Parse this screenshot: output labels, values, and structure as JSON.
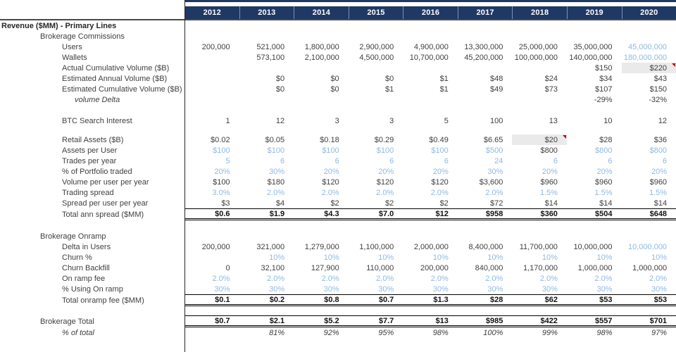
{
  "colors": {
    "header_bg": "#1F3864",
    "header_text": "#FFFFFF",
    "input_blue": "#8FB9E4",
    "highlight_grey": "#EAEAEA",
    "comment_red": "#C00000",
    "text": "#404040"
  },
  "columns": [
    "2012",
    "2013",
    "2014",
    "2015",
    "2016",
    "2017",
    "2018",
    "2019",
    "2020"
  ],
  "rows": [
    {
      "label": "Revenue ($MM) - Primary Lines",
      "ind": 0,
      "bold": true,
      "cells": [
        "",
        "",
        "",
        "",
        "",
        "",
        "",
        "",
        ""
      ]
    },
    {
      "label": "Brokerage Commissions",
      "ind": 1,
      "cells": [
        "",
        "",
        "",
        "",
        "",
        "",
        "",
        "",
        ""
      ]
    },
    {
      "label": "Users",
      "ind": 2,
      "cells": [
        "200,000",
        "521,000",
        "1,800,000",
        "2,900,000",
        "4,900,000",
        "13,300,000",
        "25,000,000",
        "35,000,000",
        {
          "v": "45,000,000",
          "b": 1
        }
      ]
    },
    {
      "label": "Wallets",
      "ind": 2,
      "cells": [
        "",
        "573,100",
        "2,100,000",
        "4,500,000",
        "10,700,000",
        "45,200,000",
        "100,000,000",
        "140,000,000",
        {
          "v": "180,000,000",
          "b": 1
        }
      ]
    },
    {
      "label": "Actual Cumulative Volume ($B)",
      "ind": 2,
      "cells": [
        "",
        "",
        "",
        "",
        "",
        "",
        "",
        "$150",
        {
          "v": "$220",
          "g": 1,
          "n": 1
        }
      ]
    },
    {
      "label": "Estimated Annual Volume ($B)",
      "ind": 2,
      "cells": [
        "",
        "$0",
        "$0",
        "$0",
        "$1",
        "$48",
        "$24",
        "$34",
        "$43"
      ]
    },
    {
      "label": "Estimated Cumulative Volume ($B)",
      "ind": 2,
      "cells": [
        "",
        "$0",
        "$0",
        "$1",
        "$1",
        "$49",
        "$73",
        "$107",
        "$150"
      ]
    },
    {
      "label": "volume Delta",
      "ind": 3,
      "ital": true,
      "cells": [
        "",
        "",
        "",
        "",
        "",
        "",
        "",
        "-29%",
        "-32%"
      ]
    },
    {
      "blank": true,
      "h": 15
    },
    {
      "label": "BTC Search Interest",
      "ind": 2,
      "cells": [
        "1",
        "12",
        "3",
        "3",
        "5",
        "100",
        "13",
        "10",
        "12"
      ]
    },
    {
      "blank": true,
      "h": 12
    },
    {
      "label": "Retail Assets ($B)",
      "ind": 2,
      "cells": [
        "$0.02",
        "$0.05",
        "$0.18",
        "$0.29",
        "$0.49",
        "$6.65",
        {
          "v": "$20",
          "g": 1,
          "n": 1
        },
        "$28",
        "$36"
      ]
    },
    {
      "label": "Assets per User",
      "ind": 2,
      "cells": [
        {
          "v": "$100",
          "b": 1
        },
        {
          "v": "$100",
          "b": 1
        },
        {
          "v": "$100",
          "b": 1
        },
        {
          "v": "$100",
          "b": 1
        },
        {
          "v": "$100",
          "b": 1
        },
        {
          "v": "$500",
          "b": 1
        },
        "$800",
        {
          "v": "$800",
          "b": 1
        },
        {
          "v": "$800",
          "b": 1
        }
      ]
    },
    {
      "label": "Trades per year",
      "ind": 2,
      "cells": [
        {
          "v": "5",
          "b": 1
        },
        {
          "v": "6",
          "b": 1
        },
        {
          "v": "6",
          "b": 1
        },
        {
          "v": "6",
          "b": 1
        },
        {
          "v": "6",
          "b": 1
        },
        {
          "v": "24",
          "b": 1
        },
        {
          "v": "6",
          "b": 1
        },
        {
          "v": "6",
          "b": 1
        },
        {
          "v": "6",
          "b": 1
        }
      ]
    },
    {
      "label": "% of Portfolio traded",
      "ind": 2,
      "cells": [
        {
          "v": "20%",
          "b": 1
        },
        {
          "v": "30%",
          "b": 1
        },
        {
          "v": "20%",
          "b": 1
        },
        {
          "v": "20%",
          "b": 1
        },
        {
          "v": "20%",
          "b": 1
        },
        {
          "v": "30%",
          "b": 1
        },
        {
          "v": "20%",
          "b": 1
        },
        {
          "v": "20%",
          "b": 1
        },
        {
          "v": "20%",
          "b": 1
        }
      ]
    },
    {
      "label": "Volume per user per year",
      "ind": 2,
      "cells": [
        "$100",
        "$180",
        "$120",
        "$120",
        "$120",
        "$3,600",
        "$960",
        "$960",
        "$960"
      ]
    },
    {
      "label": "Trading spread",
      "ind": 2,
      "cells": [
        {
          "v": "3.0%",
          "b": 1
        },
        {
          "v": "2.0%",
          "b": 1
        },
        {
          "v": "2.0%",
          "b": 1
        },
        {
          "v": "2.0%",
          "b": 1
        },
        {
          "v": "2.0%",
          "b": 1
        },
        {
          "v": "2.0%",
          "b": 1
        },
        {
          "v": "1.5%",
          "b": 1
        },
        {
          "v": "1.5%",
          "b": 1
        },
        {
          "v": "1.5%",
          "b": 1
        }
      ]
    },
    {
      "label": "Spread per user per year",
      "ind": 2,
      "cells": [
        "$3",
        "$4",
        "$2",
        "$2",
        "$2",
        "$72",
        "$14",
        "$14",
        "$14"
      ]
    },
    {
      "label": "Total ann spread ($MM)",
      "ind": 2,
      "total": true,
      "cells": [
        "$0.6",
        "$1.9",
        "$4.3",
        "$7.0",
        "$12",
        "$958",
        "$360",
        "$504",
        "$648"
      ]
    },
    {
      "blank": true,
      "h": 15
    },
    {
      "label": "Brokerage Onramp",
      "ind": 1,
      "cells": [
        "",
        "",
        "",
        "",
        "",
        "",
        "",
        "",
        ""
      ]
    },
    {
      "label": "Delta in Users",
      "ind": 2,
      "cells": [
        "200,000",
        "321,000",
        "1,279,000",
        "1,100,000",
        "2,000,000",
        "8,400,000",
        "11,700,000",
        "10,000,000",
        {
          "v": "10,000,000",
          "b": 1
        }
      ]
    },
    {
      "label": "Churn %",
      "ind": 2,
      "cells": [
        "",
        {
          "v": "10%",
          "b": 1
        },
        {
          "v": "10%",
          "b": 1
        },
        {
          "v": "10%",
          "b": 1
        },
        {
          "v": "10%",
          "b": 1
        },
        {
          "v": "10%",
          "b": 1
        },
        {
          "v": "10%",
          "b": 1
        },
        {
          "v": "10%",
          "b": 1
        },
        {
          "v": "10%",
          "b": 1
        }
      ]
    },
    {
      "label": "Churn Backfill",
      "ind": 2,
      "cells": [
        "0",
        "32,100",
        "127,900",
        "110,000",
        "200,000",
        "840,000",
        "1,170,000",
        "1,000,000",
        "1,000,000"
      ]
    },
    {
      "label": "On ramp fee",
      "ind": 2,
      "cells": [
        {
          "v": "2.0%",
          "b": 1
        },
        {
          "v": "2.0%",
          "b": 1
        },
        {
          "v": "2.0%",
          "b": 1
        },
        {
          "v": "2.0%",
          "b": 1
        },
        {
          "v": "2.0%",
          "b": 1
        },
        {
          "v": "2.0%",
          "b": 1
        },
        {
          "v": "2.0%",
          "b": 1
        },
        {
          "v": "2.0%",
          "b": 1
        },
        {
          "v": "2.0%",
          "b": 1
        }
      ]
    },
    {
      "label": "% Using On ramp",
      "ind": 2,
      "cells": [
        {
          "v": "30%",
          "b": 1
        },
        {
          "v": "30%",
          "b": 1
        },
        {
          "v": "30%",
          "b": 1
        },
        {
          "v": "30%",
          "b": 1
        },
        {
          "v": "30%",
          "b": 1
        },
        {
          "v": "30%",
          "b": 1
        },
        {
          "v": "30%",
          "b": 1
        },
        {
          "v": "30%",
          "b": 1
        },
        {
          "v": "30%",
          "b": 1
        }
      ]
    },
    {
      "label": "Total onramp fee ($MM)",
      "ind": 2,
      "total": true,
      "cells": [
        "$0.1",
        "$0.2",
        "$0.8",
        "$0.7",
        "$1.3",
        "$28",
        "$62",
        "$53",
        "$53"
      ]
    },
    {
      "blank": true,
      "h": 13
    },
    {
      "label": "Brokerage Total",
      "ind": 1,
      "total": true,
      "cells": [
        "$0.7",
        "$2.1",
        "$5.2",
        "$7.7",
        "$13",
        "$985",
        "$422",
        "$557",
        "$701"
      ]
    },
    {
      "label": "% of total",
      "ind": 2,
      "ital": true,
      "ivals": true,
      "cells": [
        "",
        "81%",
        "92%",
        "95%",
        "98%",
        "100%",
        "99%",
        "98%",
        "97%"
      ]
    }
  ]
}
